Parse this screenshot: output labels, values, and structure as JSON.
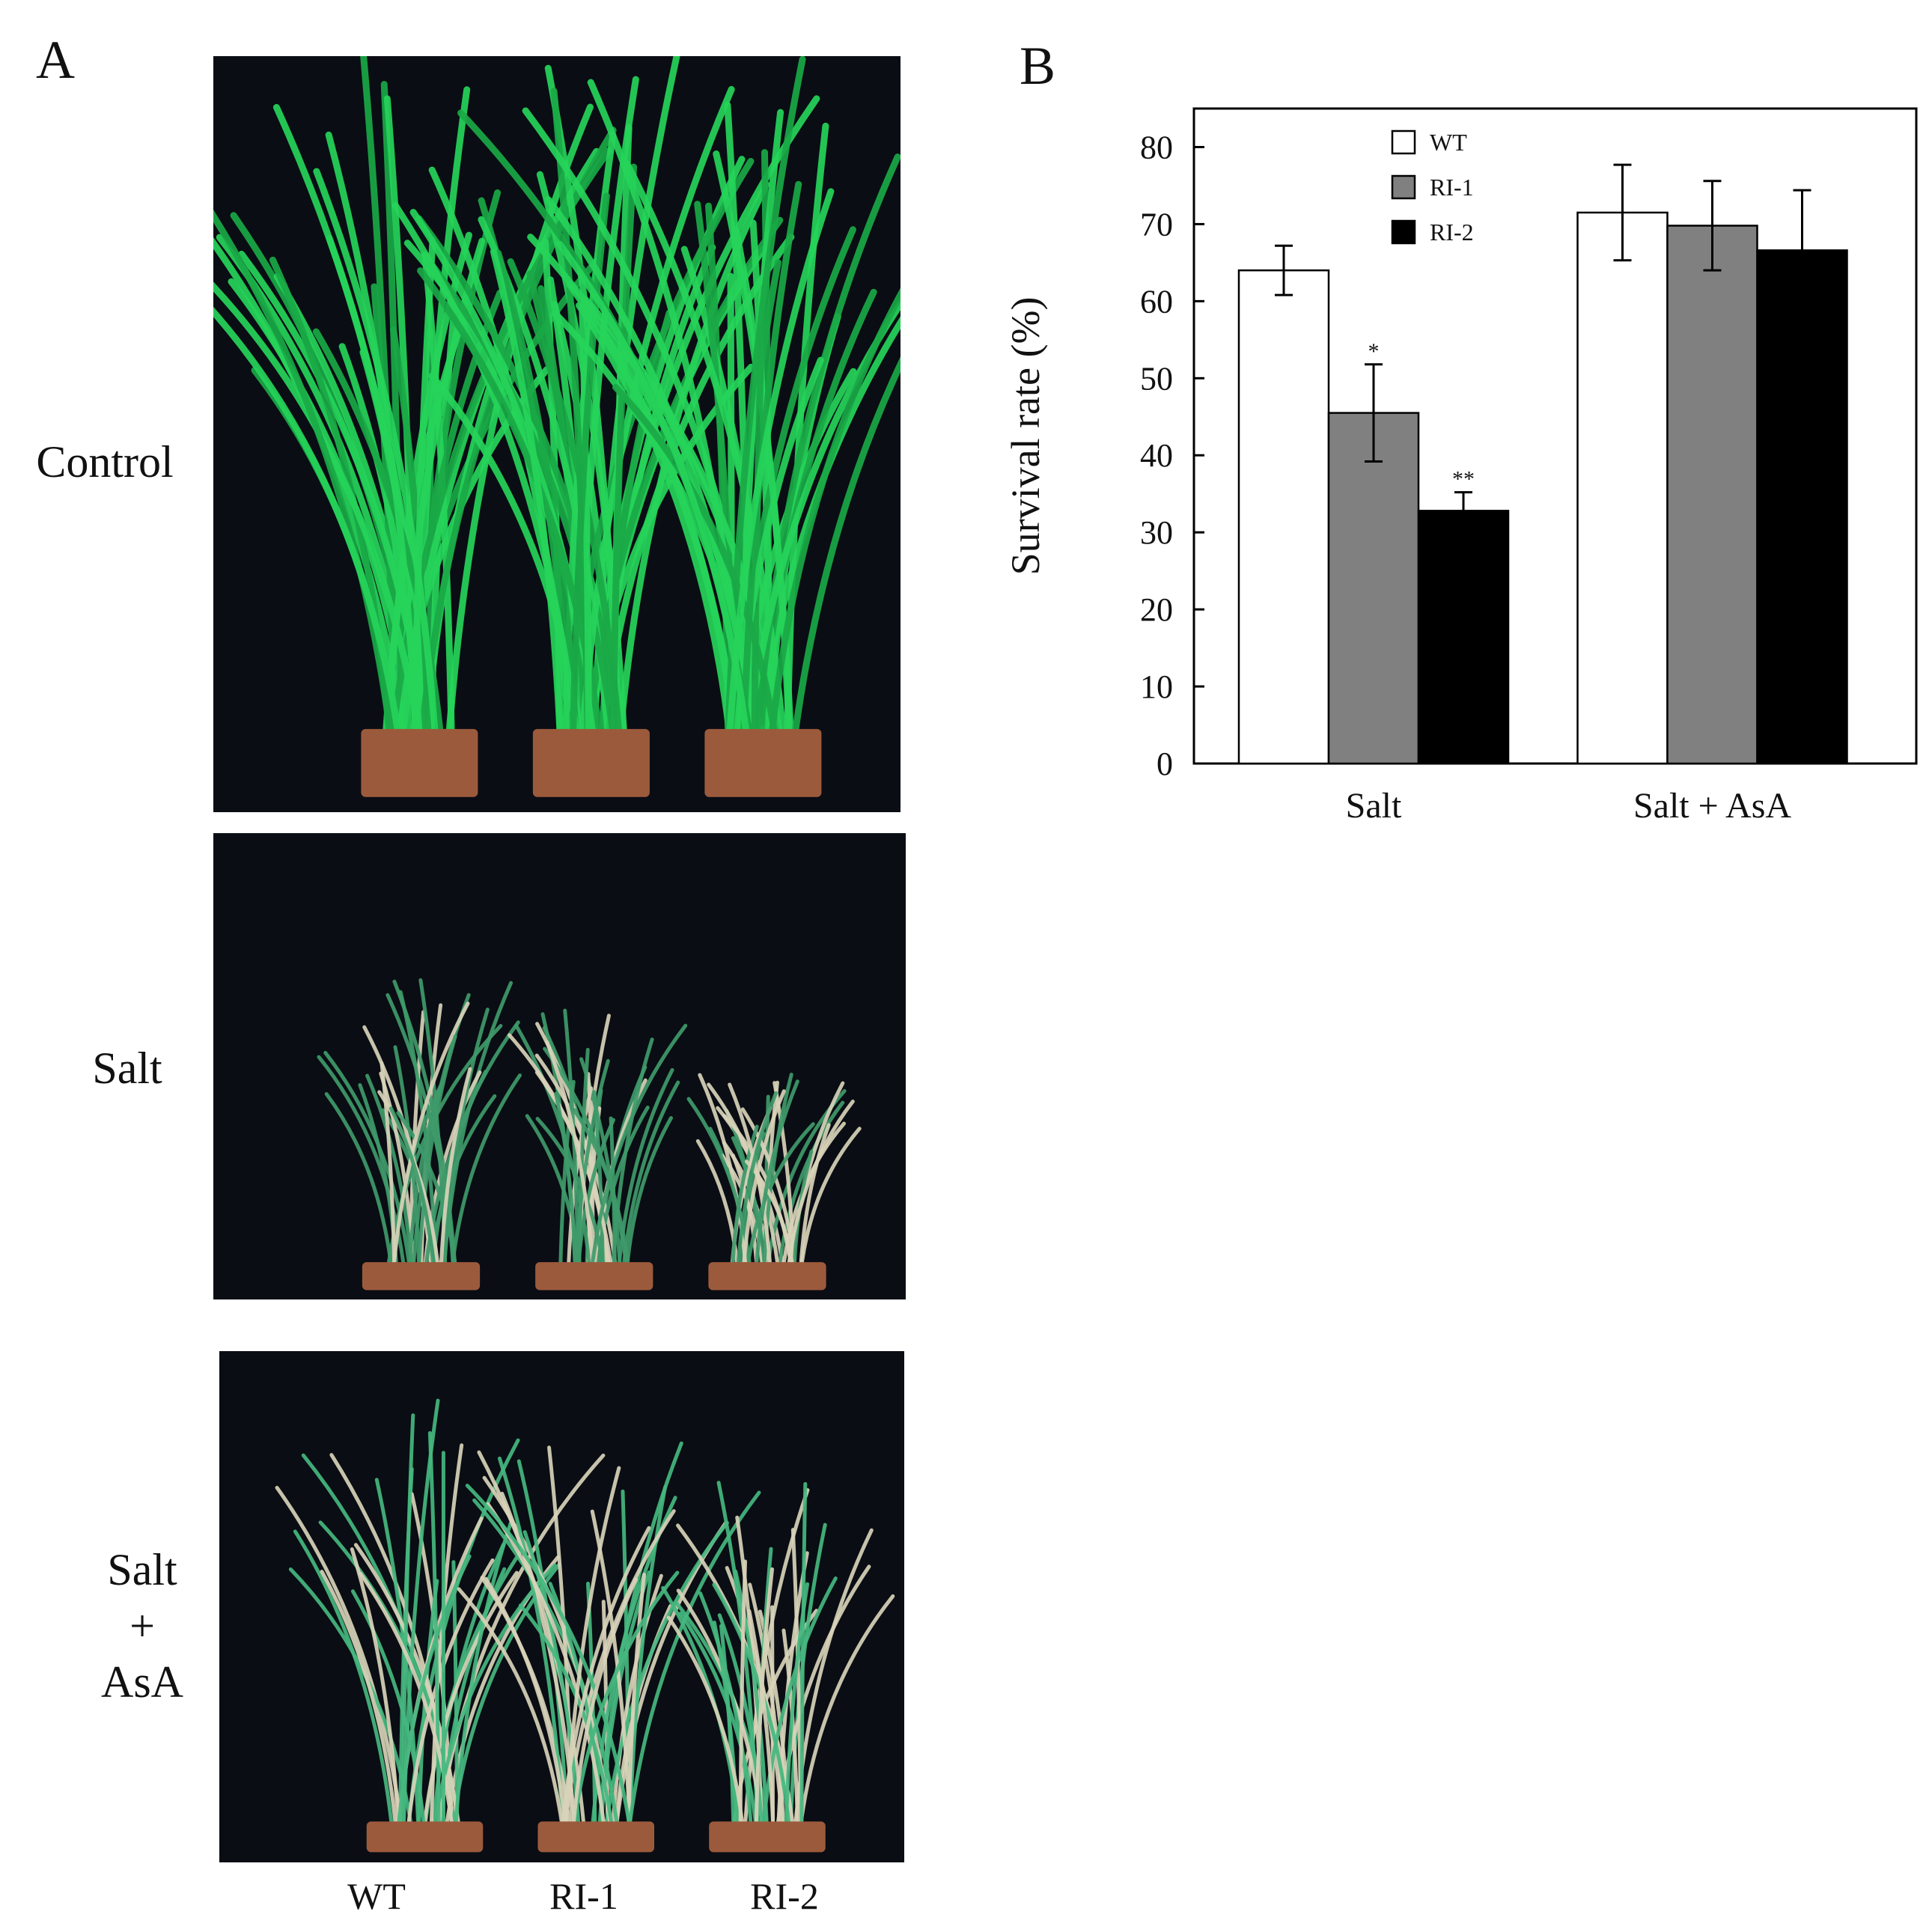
{
  "panels": {
    "a_letter": "A",
    "b_letter": "B"
  },
  "photo_rows": [
    {
      "label_lines": [
        "Control"
      ],
      "condition": "healthy"
    },
    {
      "label_lines": [
        "Salt"
      ],
      "condition": "stressed"
    },
    {
      "label_lines": [
        "Salt",
        "+",
        "AsA"
      ],
      "condition": "recovering"
    }
  ],
  "genotype_labels": [
    "WT",
    "RI-1",
    "RI-2"
  ],
  "colors": {
    "photo_background": "#0a0d14",
    "pot": "#9c5a3c",
    "healthy_leaf": "#26d45a",
    "stressed_leaf": "#d8d3b8",
    "wt_bar": "#ffffff",
    "ri1_bar": "#808080",
    "ri2_bar": "#000000"
  },
  "chart_data": {
    "type": "bar",
    "categories": [
      "Salt",
      "Salt + AsA"
    ],
    "series": [
      {
        "name": "WT",
        "color": "#ffffff",
        "values": [
          64,
          71.5
        ],
        "errors": [
          3.2,
          6.2
        ],
        "significance": [
          "",
          ""
        ]
      },
      {
        "name": "RI-1",
        "color": "#808080",
        "values": [
          45.5,
          69.8
        ],
        "errors": [
          6.3,
          5.8
        ],
        "significance": [
          "*",
          ""
        ]
      },
      {
        "name": "RI-2",
        "color": "#000000",
        "values": [
          32.8,
          66.6
        ],
        "errors": [
          2.4,
          7.8
        ],
        "significance": [
          "**",
          ""
        ]
      }
    ],
    "ylabel": "Survival rate (%)",
    "xlabel": "",
    "ylim": [
      0,
      85
    ],
    "yticks": [
      0,
      10,
      20,
      30,
      40,
      50,
      60,
      70,
      80
    ],
    "legend_position": "top-left"
  }
}
